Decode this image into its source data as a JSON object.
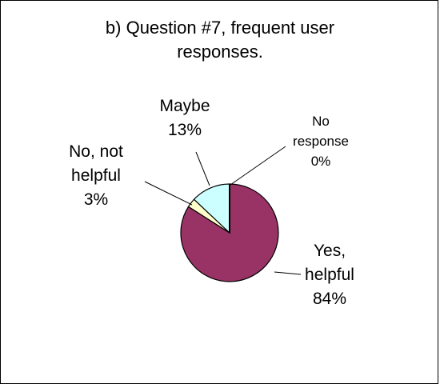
{
  "title_line1": "b) Question #7, frequent user",
  "title_line2": "responses.",
  "chart_data": {
    "type": "pie",
    "title": "b) Question #7, frequent user responses.",
    "slices": [
      {
        "label": "Yes, helpful",
        "label_lines": [
          "Yes,",
          "helpful"
        ],
        "value": 84,
        "display": "84%",
        "color": "#993366"
      },
      {
        "label": "No, not helpful",
        "label_lines": [
          "No, not",
          "helpful"
        ],
        "value": 3,
        "display": "3%",
        "color": "#FFFFCC"
      },
      {
        "label": "Maybe",
        "label_lines": [
          "Maybe"
        ],
        "value": 13,
        "display": "13%",
        "color": "#CCFFFF"
      },
      {
        "label": "No response",
        "label_lines": [
          "No",
          "response"
        ],
        "value": 0,
        "display": "0%",
        "color": "#000000"
      }
    ],
    "start": "12 o'clock",
    "direction": "clockwise",
    "legend": "none"
  }
}
